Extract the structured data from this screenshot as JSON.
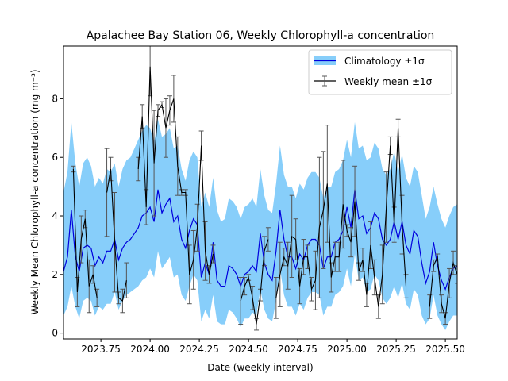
{
  "chart_data": {
    "type": "line",
    "title": "Apalachee Bay Station 06, Weekly Chlorophyll-a concentration",
    "xlabel": "Date (weekly interval)",
    "ylabel": "Weekly Mean Chlorophyll-a concentration (mg m⁻³)",
    "xlim": [
      2023.56,
      2025.56
    ],
    "ylim": [
      -0.2,
      9.8
    ],
    "xticks": [
      2023.75,
      2024.0,
      2024.25,
      2024.5,
      2024.75,
      2025.0,
      2025.25,
      2025.5
    ],
    "xtick_labels": [
      "2023.75",
      "2024.00",
      "2024.25",
      "2024.50",
      "2024.75",
      "2025.00",
      "2025.25",
      "2025.50"
    ],
    "yticks": [
      0,
      2,
      4,
      6,
      8
    ],
    "ytick_labels": [
      "0",
      "2",
      "4",
      "6",
      "8"
    ],
    "grid": false,
    "legend_position": "top-right",
    "colors": {
      "climatology_line": "#0000dd",
      "climatology_band": "#87cefa",
      "weekly_line": "#000000",
      "errorbar": "#555555"
    },
    "climatology": {
      "name": "Climatology ±1σ",
      "x": [
        2023.56,
        2023.58,
        2023.6,
        2023.62,
        2023.64,
        2023.66,
        2023.68,
        2023.7,
        2023.72,
        2023.74,
        2023.76,
        2023.78,
        2023.8,
        2023.82,
        2023.84,
        2023.86,
        2023.88,
        2023.9,
        2023.92,
        2023.94,
        2023.96,
        2023.98,
        2024.0,
        2024.02,
        2024.04,
        2024.06,
        2024.08,
        2024.1,
        2024.12,
        2024.14,
        2024.16,
        2024.18,
        2024.2,
        2024.22,
        2024.24,
        2024.26,
        2024.28,
        2024.3,
        2024.32,
        2024.34,
        2024.36,
        2024.38,
        2024.4,
        2024.42,
        2024.44,
        2024.46,
        2024.48,
        2024.5,
        2024.52,
        2024.54,
        2024.56,
        2024.58,
        2024.6,
        2024.62,
        2024.64,
        2024.66,
        2024.68,
        2024.7,
        2024.72,
        2024.74,
        2024.76,
        2024.78,
        2024.8,
        2024.82,
        2024.84,
        2024.86,
        2024.88,
        2024.9,
        2024.92,
        2024.94,
        2024.96,
        2024.98,
        2025.0,
        2025.02,
        2025.04,
        2025.06,
        2025.08,
        2025.1,
        2025.12,
        2025.14,
        2025.16,
        2025.18,
        2025.2,
        2025.22,
        2025.24,
        2025.26,
        2025.28,
        2025.3,
        2025.32,
        2025.34,
        2025.36,
        2025.38,
        2025.4,
        2025.42,
        2025.44,
        2025.46,
        2025.48,
        2025.5,
        2025.52,
        2025.54,
        2025.56
      ],
      "mean": [
        2.1,
        2.6,
        4.2,
        2.6,
        2.1,
        2.9,
        3.0,
        2.9,
        2.3,
        2.6,
        2.4,
        2.8,
        2.8,
        3.2,
        2.5,
        2.9,
        3.1,
        3.2,
        3.4,
        3.6,
        4.0,
        4.1,
        4.3,
        3.8,
        4.9,
        4.1,
        4.4,
        4.6,
        3.8,
        4.0,
        3.2,
        2.9,
        3.5,
        3.9,
        3.7,
        1.9,
        2.4,
        2.0,
        3.1,
        1.8,
        1.6,
        1.6,
        2.3,
        2.2,
        2.0,
        1.6,
        2.0,
        2.1,
        2.3,
        2.1,
        3.4,
        2.4,
        2.0,
        1.8,
        2.8,
        4.2,
        3.2,
        2.6,
        2.6,
        2.2,
        2.7,
        2.5,
        3.0,
        3.2,
        3.2,
        3.0,
        2.2,
        2.6,
        2.6,
        3.1,
        3.2,
        3.5,
        4.3,
        3.6,
        4.9,
        3.9,
        4.0,
        3.4,
        3.6,
        4.1,
        3.9,
        3.2,
        3.0,
        3.2,
        3.8,
        3.2,
        3.8,
        3.0,
        2.7,
        3.5,
        3.3,
        2.4,
        1.7,
        2.1,
        3.1,
        2.3,
        1.8,
        1.5,
        1.9,
        2.2,
        2.3
      ],
      "upper": [
        4.8,
        5.5,
        7.2,
        5.8,
        5.0,
        5.8,
        6.0,
        5.7,
        5.0,
        5.3,
        5.1,
        5.6,
        5.5,
        5.8,
        5.0,
        5.6,
        5.9,
        6.0,
        6.3,
        6.6,
        6.9,
        7.1,
        7.0,
        6.5,
        7.3,
        6.7,
        6.8,
        7.0,
        6.3,
        6.4,
        5.6,
        5.2,
        5.9,
        6.2,
        6.0,
        4.3,
        4.8,
        4.3,
        5.3,
        4.2,
        3.8,
        3.9,
        4.6,
        4.5,
        4.3,
        3.9,
        4.3,
        4.4,
        4.6,
        4.3,
        5.6,
        4.7,
        4.2,
        4.1,
        5.1,
        6.4,
        5.4,
        5.0,
        5.0,
        4.6,
        5.1,
        4.9,
        5.3,
        5.5,
        5.5,
        5.3,
        4.6,
        5.0,
        5.0,
        5.5,
        5.6,
        5.9,
        6.6,
        6.0,
        7.2,
        6.3,
        6.4,
        5.9,
        6.0,
        6.5,
        6.3,
        5.6,
        5.4,
        5.6,
        6.2,
        5.5,
        6.1,
        5.3,
        5.0,
        5.7,
        5.5,
        4.7,
        3.9,
        4.3,
        5.0,
        4.4,
        3.9,
        3.6,
        4.0,
        4.3,
        4.4
      ],
      "lower": [
        0.6,
        0.9,
        1.6,
        0.9,
        0.5,
        1.1,
        1.2,
        1.1,
        0.6,
        0.9,
        0.8,
        1.0,
        1.0,
        1.4,
        0.8,
        1.1,
        1.3,
        1.4,
        1.5,
        1.6,
        1.8,
        1.9,
        2.2,
        1.9,
        2.8,
        2.2,
        2.4,
        2.6,
        1.9,
        2.0,
        1.3,
        1.1,
        1.6,
        2.0,
        1.8,
        0.4,
        0.8,
        0.5,
        1.3,
        0.4,
        0.3,
        0.3,
        0.8,
        0.7,
        0.5,
        0.2,
        0.5,
        0.5,
        0.7,
        0.6,
        1.5,
        0.8,
        0.5,
        0.4,
        1.1,
        2.2,
        1.3,
        0.9,
        0.9,
        0.6,
        1.0,
        0.8,
        1.2,
        1.4,
        1.4,
        1.3,
        0.6,
        0.9,
        0.9,
        1.3,
        1.4,
        1.6,
        2.2,
        1.6,
        2.7,
        1.8,
        1.9,
        1.4,
        1.5,
        2.0,
        1.8,
        1.2,
        1.0,
        1.2,
        1.6,
        1.2,
        1.7,
        1.0,
        0.8,
        1.5,
        1.3,
        0.6,
        0.3,
        0.5,
        1.3,
        0.6,
        0.3,
        0.1,
        0.4,
        0.6,
        0.6
      ]
    },
    "weekly": {
      "name": "Weekly mean ±1σ",
      "segments": [
        {
          "x": [
            2023.61,
            2023.63,
            2023.65,
            2023.67,
            2023.69,
            2023.71,
            2023.73
          ],
          "y": [
            5.6,
            1.4,
            3.2,
            3.9,
            1.6,
            2.0,
            1.2
          ],
          "err": [
            0.1,
            0.5,
            0.8,
            0.3,
            0.9,
            0.3,
            0.3
          ]
        },
        {
          "x": [
            2023.78,
            2023.8,
            2023.82,
            2023.84,
            2023.86,
            2023.88
          ],
          "y": [
            4.8,
            5.6,
            3.1,
            1.2,
            1.1,
            1.8
          ],
          "err": [
            1.5,
            0.4,
            1.7,
            0.2,
            0.4,
            0.6
          ]
        },
        {
          "x": [
            2023.94,
            2023.96,
            2023.98,
            2024.0,
            2024.02,
            2024.04,
            2024.06,
            2024.08,
            2024.1,
            2024.12,
            2024.14,
            2024.16,
            2024.18,
            2024.2,
            2024.22,
            2024.24,
            2024.26,
            2024.28,
            2024.3,
            2024.32
          ],
          "y": [
            5.6,
            7.4,
            4.3,
            9.1,
            5.8,
            7.6,
            7.8,
            7.0,
            7.6,
            8.0,
            5.7,
            4.8,
            4.8,
            2.0,
            2.5,
            3.6,
            6.4,
            2.8,
            2.0,
            2.7
          ],
          "err": [
            0.4,
            0.4,
            0.6,
            1.0,
            1.8,
            0.2,
            0.1,
            1.0,
            0.5,
            0.8,
            1.0,
            0.1,
            0.1,
            1.0,
            1.0,
            0.8,
            0.5,
            1.0,
            0.3,
            0.3
          ]
        },
        {
          "x": [
            2024.46,
            2024.48,
            2024.5,
            2024.52,
            2024.54,
            2024.56,
            2024.58,
            2024.6
          ],
          "y": [
            1.1,
            1.6,
            1.9,
            1.2,
            0.3,
            1.3,
            2.8,
            3.2
          ],
          "err": [
            0.8,
            0.3,
            0.1,
            0.4,
            0.2,
            0.2,
            0.5,
            0.4
          ]
        },
        {
          "x": [
            2024.64,
            2024.66,
            2024.68,
            2024.7,
            2024.72,
            2024.74,
            2024.76,
            2024.78,
            2024.8,
            2024.82,
            2024.84,
            2024.86,
            2024.88,
            2024.9,
            2024.92,
            2024.94,
            2024.96,
            2024.98,
            2025.0,
            2025.02,
            2025.04,
            2025.06,
            2025.08,
            2025.1,
            2025.12,
            2025.14,
            2025.16,
            2025.18,
            2025.2,
            2025.22,
            2025.24,
            2025.26,
            2025.28,
            2025.3
          ],
          "y": [
            1.2,
            2.0,
            2.6,
            2.3,
            3.3,
            3.2,
            1.6,
            2.6,
            2.6,
            1.5,
            1.8,
            3.6,
            4.2,
            5.1,
            1.9,
            2.6,
            2.6,
            4.4,
            3.5,
            3.1,
            4.5,
            2.1,
            2.5,
            1.3,
            3.0,
            1.9,
            0.9,
            2.0,
            4.3,
            6.4,
            3.7,
            7.0,
            3.7,
            1.6
          ],
          "err": [
            0.7,
            1.1,
            0.3,
            0.8,
            1.4,
            0.7,
            0.6,
            0.6,
            0.4,
            0.4,
            1.0,
            2.4,
            2.0,
            2.0,
            0.5,
            0.5,
            0.5,
            1.5,
            0.2,
            0.5,
            1.2,
            0.3,
            0.4,
            0.4,
            0.8,
            0.6,
            0.4,
            1.0,
            1.2,
            0.3,
            0.6,
            0.3,
            1.0,
            0.4
          ]
        },
        {
          "x": [
            2025.42,
            2025.44,
            2025.46,
            2025.48,
            2025.5,
            2025.52,
            2025.54,
            2025.56
          ],
          "y": [
            0.9,
            2.3,
            2.6,
            1.0,
            0.5,
            1.7,
            2.4,
            2.0
          ],
          "err": [
            0.4,
            0.2,
            0.1,
            0.3,
            0.2,
            0.5,
            0.4,
            0.3
          ]
        }
      ]
    }
  }
}
